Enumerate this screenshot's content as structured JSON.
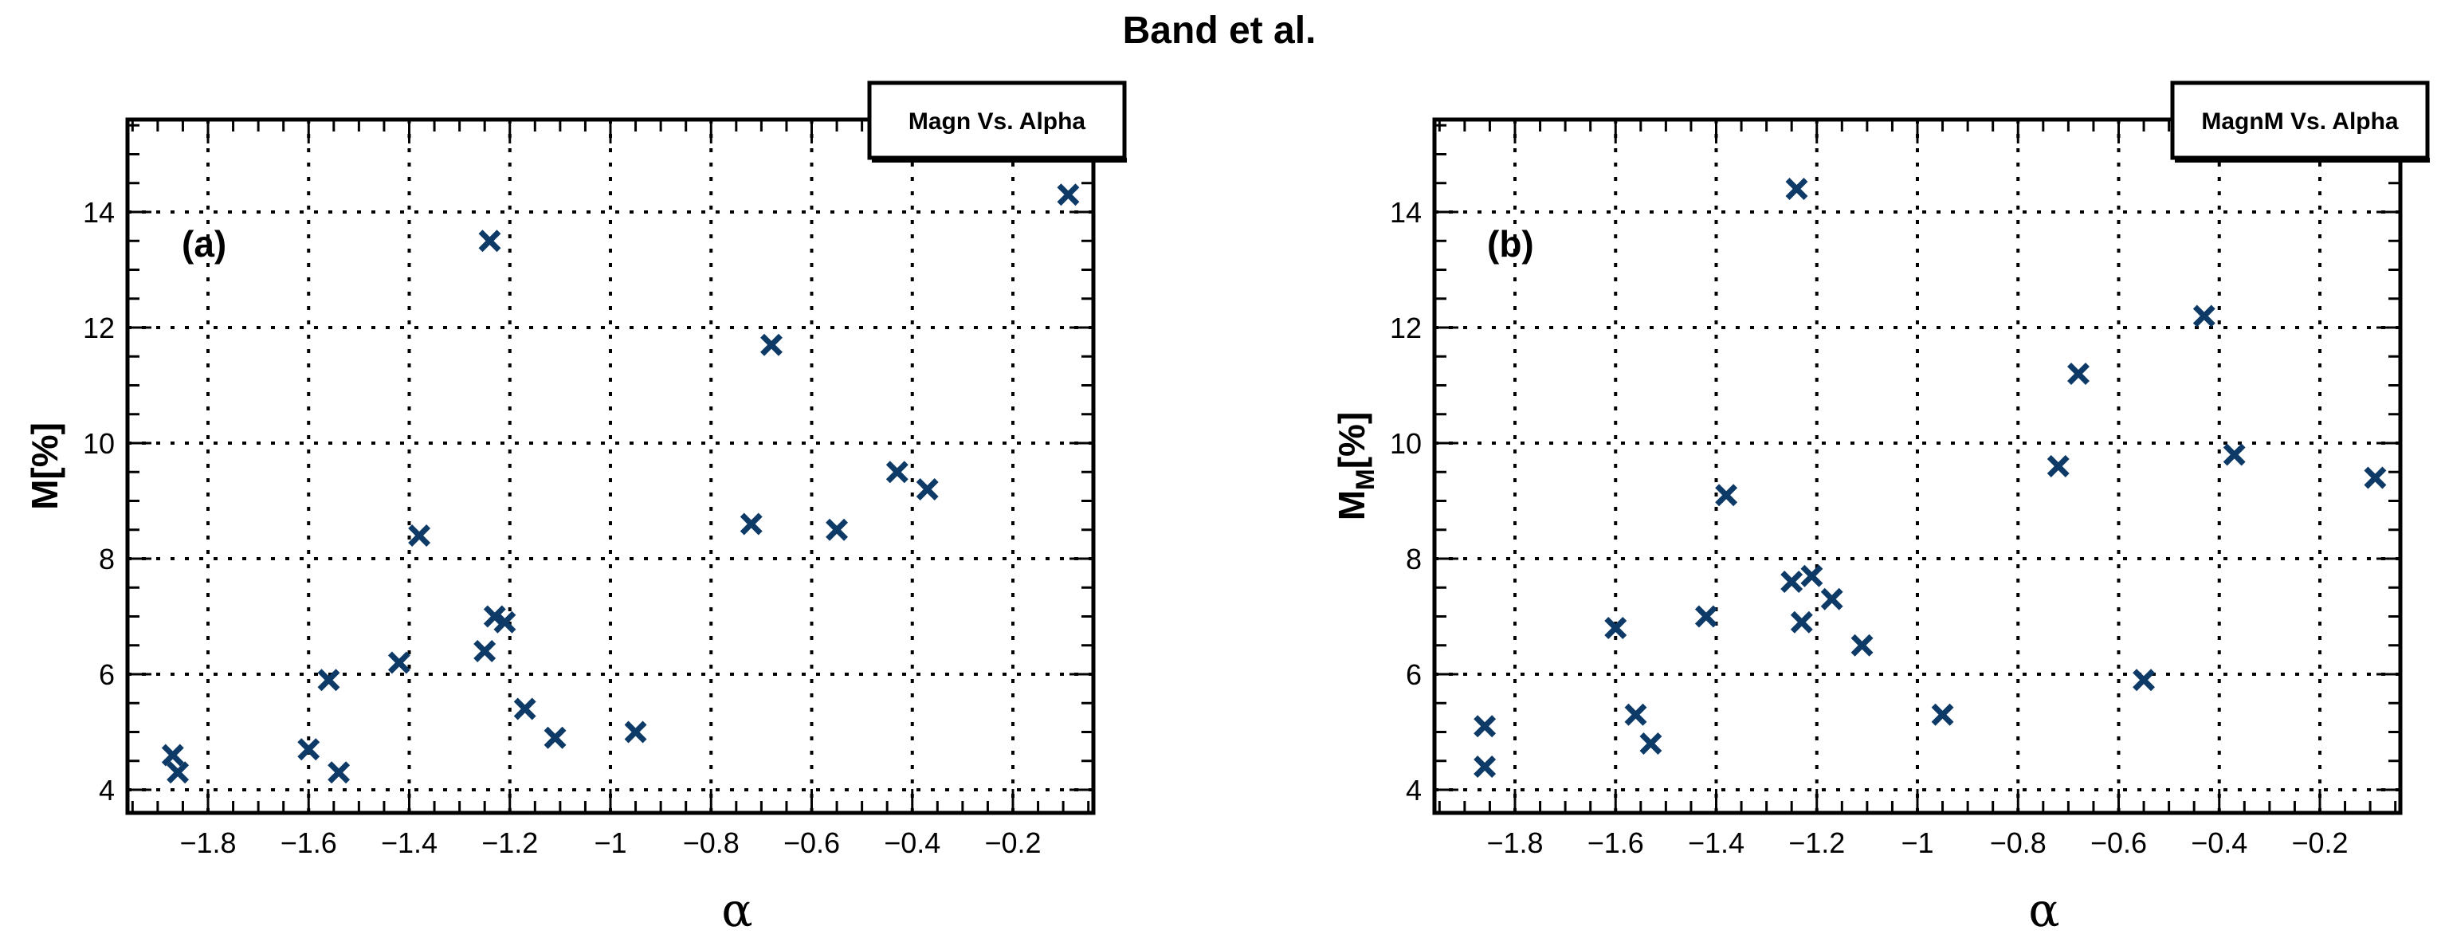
{
  "title": "Band et al.",
  "colors": {
    "marker": "#0d3a66",
    "axis": "#000000",
    "grid": "#000000"
  },
  "chart_data": [
    {
      "type": "scatter",
      "panel_label": "(a)",
      "legend": "Magn Vs. Alpha",
      "legend_position": "top-right",
      "xlabel": "α",
      "ylabel": "M[%]",
      "ylabel_sub": "",
      "xlim": [
        -1.96,
        -0.04
      ],
      "ylim": [
        3.6,
        15.6
      ],
      "xticks": [
        -1.8,
        -1.6,
        -1.4,
        -1.2,
        -1.0,
        -0.8,
        -0.6,
        -0.4,
        -0.2
      ],
      "xtick_labels": [
        "−1.8",
        "−1.6",
        "−1.4",
        "−1.2",
        "−1",
        "−0.8",
        "−0.6",
        "−0.4",
        "−0.2"
      ],
      "yticks": [
        4,
        6,
        8,
        10,
        12,
        14
      ],
      "ytick_labels": [
        "4",
        "6",
        "8",
        "10",
        "12",
        "14"
      ],
      "grid": true,
      "marker": "x",
      "points": [
        {
          "x": -1.87,
          "y": 4.6
        },
        {
          "x": -1.86,
          "y": 4.3
        },
        {
          "x": -1.6,
          "y": 4.7
        },
        {
          "x": -1.56,
          "y": 5.9
        },
        {
          "x": -1.54,
          "y": 4.3
        },
        {
          "x": -1.42,
          "y": 6.2
        },
        {
          "x": -1.38,
          "y": 8.4
        },
        {
          "x": -1.24,
          "y": 13.5
        },
        {
          "x": -1.25,
          "y": 6.4
        },
        {
          "x": -1.23,
          "y": 7.0
        },
        {
          "x": -1.21,
          "y": 6.9
        },
        {
          "x": -1.17,
          "y": 5.4
        },
        {
          "x": -1.11,
          "y": 4.9
        },
        {
          "x": -0.95,
          "y": 5.0
        },
        {
          "x": -0.72,
          "y": 8.6
        },
        {
          "x": -0.68,
          "y": 11.7
        },
        {
          "x": -0.55,
          "y": 8.5
        },
        {
          "x": -0.43,
          "y": 9.5
        },
        {
          "x": -0.37,
          "y": 9.2
        },
        {
          "x": -0.09,
          "y": 14.3
        }
      ]
    },
    {
      "type": "scatter",
      "panel_label": "(b)",
      "legend": "MagnM Vs. Alpha",
      "legend_position": "top-right",
      "xlabel": "α",
      "ylabel": "M",
      "ylabel_sub": "M",
      "ylabel_tail": "[%]",
      "xlim": [
        -1.96,
        -0.04
      ],
      "ylim": [
        3.6,
        15.6
      ],
      "xticks": [
        -1.8,
        -1.6,
        -1.4,
        -1.2,
        -1.0,
        -0.8,
        -0.6,
        -0.4,
        -0.2
      ],
      "xtick_labels": [
        "−1.8",
        "−1.6",
        "−1.4",
        "−1.2",
        "−1",
        "−0.8",
        "−0.6",
        "−0.4",
        "−0.2"
      ],
      "yticks": [
        4,
        6,
        8,
        10,
        12,
        14
      ],
      "ytick_labels": [
        "4",
        "6",
        "8",
        "10",
        "12",
        "14"
      ],
      "grid": true,
      "marker": "x",
      "points": [
        {
          "x": -1.86,
          "y": 5.1
        },
        {
          "x": -1.86,
          "y": 4.4
        },
        {
          "x": -1.6,
          "y": 6.8
        },
        {
          "x": -1.56,
          "y": 5.3
        },
        {
          "x": -1.53,
          "y": 4.8
        },
        {
          "x": -1.42,
          "y": 7.0
        },
        {
          "x": -1.38,
          "y": 9.1
        },
        {
          "x": -1.24,
          "y": 14.4
        },
        {
          "x": -1.25,
          "y": 7.6
        },
        {
          "x": -1.23,
          "y": 6.9
        },
        {
          "x": -1.21,
          "y": 7.7
        },
        {
          "x": -1.17,
          "y": 7.3
        },
        {
          "x": -1.11,
          "y": 6.5
        },
        {
          "x": -0.95,
          "y": 5.3
        },
        {
          "x": -0.72,
          "y": 9.6
        },
        {
          "x": -0.68,
          "y": 11.2
        },
        {
          "x": -0.55,
          "y": 5.9
        },
        {
          "x": -0.43,
          "y": 12.2
        },
        {
          "x": -0.37,
          "y": 9.8
        },
        {
          "x": -0.09,
          "y": 9.4
        }
      ]
    }
  ]
}
